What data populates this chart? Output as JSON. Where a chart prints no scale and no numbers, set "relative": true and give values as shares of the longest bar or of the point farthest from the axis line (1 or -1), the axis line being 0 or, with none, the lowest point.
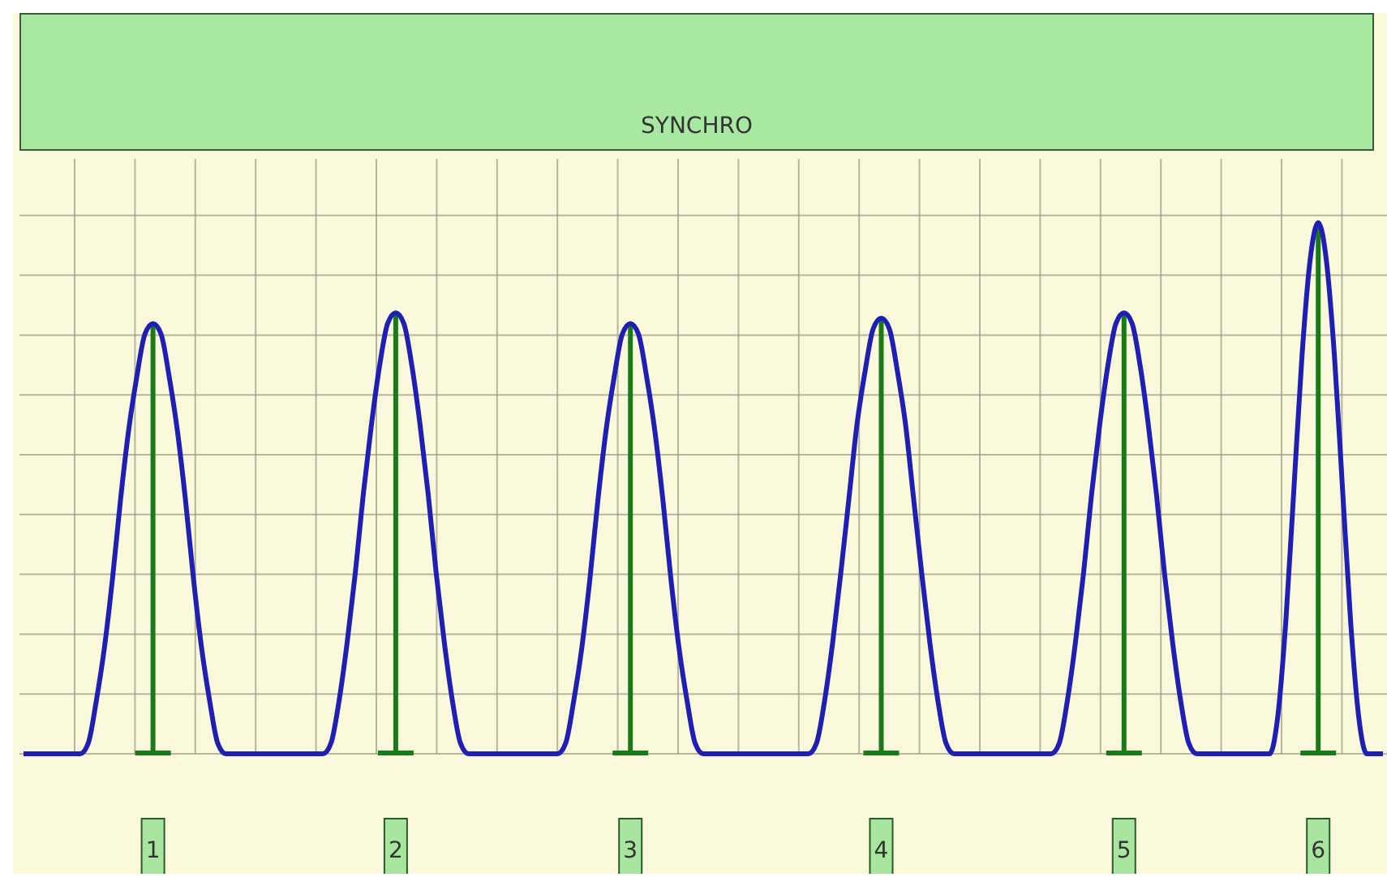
{
  "chart_data": {
    "type": "line",
    "title": "SYNCHRO",
    "relative": true,
    "grid": true,
    "categories": [
      null,
      null,
      null,
      null,
      null,
      null,
      null,
      null,
      null,
      null,
      null,
      null,
      null,
      null,
      null,
      null,
      "1",
      null,
      null,
      null,
      null,
      null,
      null,
      null,
      null,
      null,
      null,
      null,
      null,
      null,
      null,
      null,
      null,
      null,
      null,
      null,
      null,
      null,
      null,
      null,
      null,
      null,
      null,
      null,
      null,
      null,
      "2",
      null,
      null,
      null,
      null,
      null,
      null,
      null,
      null,
      null,
      null,
      null,
      null,
      null,
      null,
      null,
      null,
      null,
      null,
      null,
      null,
      null,
      null,
      null,
      null,
      null,
      null,
      null,
      null,
      "3",
      null,
      null,
      null,
      null,
      null,
      null,
      null,
      null,
      null,
      null,
      null,
      null,
      null,
      null,
      null,
      null,
      null,
      null,
      null,
      null,
      null,
      null,
      null,
      null,
      null,
      null,
      null,
      null,
      null,
      null,
      "4",
      null,
      null,
      null,
      null,
      null,
      null,
      null,
      null,
      null,
      null,
      null,
      null,
      null,
      null,
      null,
      null,
      null,
      null,
      null,
      null,
      null,
      null,
      null,
      null,
      null,
      null,
      null,
      null,
      null,
      "5",
      null,
      null,
      null,
      null,
      null,
      null,
      null,
      null,
      null,
      null,
      null,
      null,
      null,
      null,
      null,
      null,
      null,
      null,
      null,
      null,
      null,
      null,
      null,
      "6",
      null,
      null,
      null,
      null,
      null,
      null,
      null,
      null
    ],
    "series": [
      {
        "color": "#1f1fb4",
        "values": [
          0,
          0,
          0,
          0,
          0,
          0,
          0,
          0,
          0.02,
          0.1,
          0.2,
          0.33,
          0.48,
          0.61,
          0.71,
          0.79,
          0.81,
          0.79,
          0.71,
          0.61,
          0.48,
          0.33,
          0.2,
          0.1,
          0.02,
          0,
          0,
          0,
          0,
          0,
          0,
          0,
          0,
          0,
          0,
          0,
          0,
          0,
          0.02,
          0.1,
          0.21,
          0.34,
          0.49,
          0.62,
          0.73,
          0.81,
          0.83,
          0.81,
          0.73,
          0.62,
          0.49,
          0.34,
          0.21,
          0.1,
          0.02,
          0,
          0,
          0,
          0,
          0,
          0,
          0,
          0,
          0,
          0,
          0,
          0,
          0.02,
          0.1,
          0.2,
          0.33,
          0.48,
          0.61,
          0.71,
          0.79,
          0.81,
          0.79,
          0.71,
          0.61,
          0.48,
          0.33,
          0.2,
          0.1,
          0.02,
          0,
          0,
          0,
          0,
          0,
          0,
          0,
          0,
          0,
          0,
          0,
          0,
          0,
          0,
          0.02,
          0.1,
          0.21,
          0.34,
          0.48,
          0.62,
          0.72,
          0.8,
          0.82,
          0.8,
          0.72,
          0.62,
          0.48,
          0.34,
          0.21,
          0.1,
          0.02,
          0,
          0,
          0,
          0,
          0,
          0,
          0,
          0,
          0,
          0,
          0,
          0,
          0,
          0.02,
          0.1,
          0.21,
          0.34,
          0.49,
          0.62,
          0.73,
          0.81,
          0.83,
          0.81,
          0.73,
          0.62,
          0.49,
          0.34,
          0.21,
          0.1,
          0.02,
          0,
          0,
          0,
          0,
          0,
          0,
          0,
          0,
          0,
          0,
          0.07,
          0.25,
          0.5,
          0.75,
          0.93,
          1,
          0.93,
          0.75,
          0.5,
          0.25,
          0.07,
          0,
          0,
          0
        ]
      },
      {
        "type": "bar",
        "color": "#1a7a1a",
        "values": [
          null,
          null,
          null,
          null,
          null,
          null,
          null,
          null,
          null,
          null,
          null,
          null,
          null,
          null,
          null,
          null,
          0.81,
          null,
          null,
          null,
          null,
          null,
          null,
          null,
          null,
          null,
          null,
          null,
          null,
          null,
          null,
          null,
          null,
          null,
          null,
          null,
          null,
          null,
          null,
          null,
          null,
          null,
          null,
          null,
          null,
          null,
          0.83,
          null,
          null,
          null,
          null,
          null,
          null,
          null,
          null,
          null,
          null,
          null,
          null,
          null,
          null,
          null,
          null,
          null,
          null,
          null,
          null,
          null,
          null,
          null,
          null,
          null,
          null,
          null,
          null,
          0.81,
          null,
          null,
          null,
          null,
          null,
          null,
          null,
          null,
          null,
          null,
          null,
          null,
          null,
          null,
          null,
          null,
          null,
          null,
          null,
          null,
          null,
          null,
          null,
          null,
          null,
          null,
          null,
          null,
          null,
          null,
          0.82,
          null,
          null,
          null,
          null,
          null,
          null,
          null,
          null,
          null,
          null,
          null,
          null,
          null,
          null,
          null,
          null,
          null,
          null,
          null,
          null,
          null,
          null,
          null,
          null,
          null,
          null,
          null,
          null,
          null,
          0.83,
          null,
          null,
          null,
          null,
          null,
          null,
          null,
          null,
          null,
          null,
          null,
          null,
          null,
          null,
          null,
          null,
          null,
          null,
          null,
          null,
          null,
          null,
          null,
          1,
          null,
          null,
          null,
          null,
          null,
          null,
          null,
          null
        ]
      }
    ]
  }
}
